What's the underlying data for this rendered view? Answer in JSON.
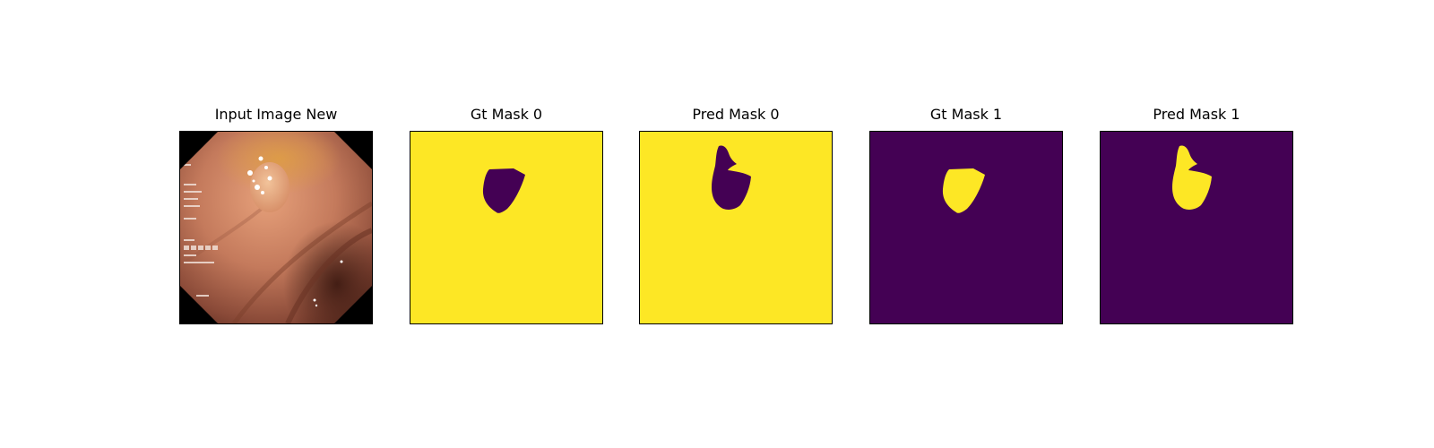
{
  "figure": {
    "panels": [
      {
        "title": "Input Image New",
        "kind": "endoscopy",
        "background": "#000000"
      },
      {
        "title": "Gt Mask 0",
        "kind": "mask",
        "shape": "gt",
        "background": "#fde725",
        "foreground": "#440154"
      },
      {
        "title": "Pred Mask 0",
        "kind": "mask",
        "shape": "pred",
        "background": "#fde725",
        "foreground": "#440154"
      },
      {
        "title": "Gt Mask 1",
        "kind": "mask",
        "shape": "gt",
        "background": "#440154",
        "foreground": "#fde725"
      },
      {
        "title": "Pred Mask 1",
        "kind": "mask",
        "shape": "pred",
        "background": "#440154",
        "foreground": "#fde725"
      }
    ]
  }
}
